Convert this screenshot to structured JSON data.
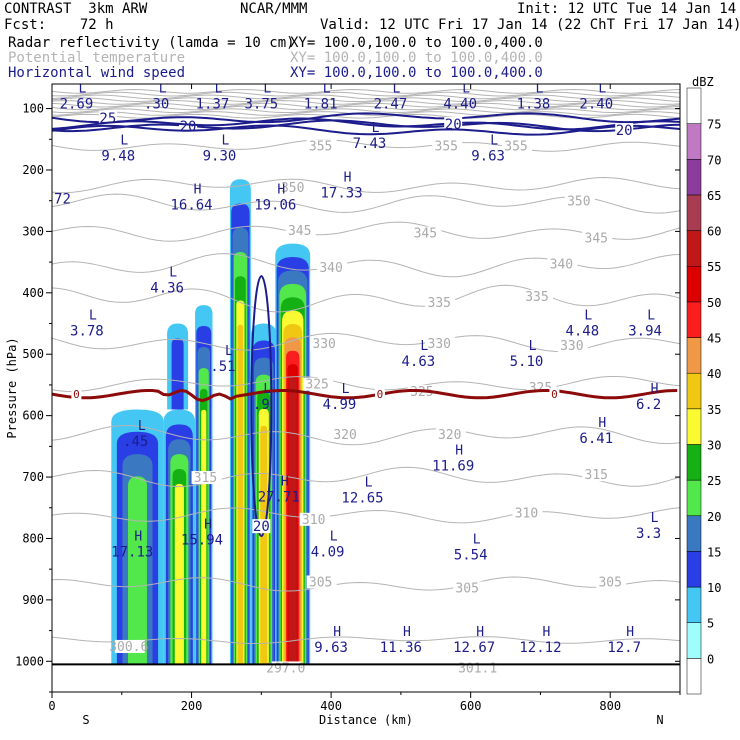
{
  "header": {
    "model": "CONTRAST  3km ARW",
    "org": "NCAR/MMM",
    "init": "Init: 12 UTC Tue 14 Jan 14",
    "fcst": "Fcst:    72 h",
    "valid": "Valid: 12 UTC Fri 17 Jan 14 (22 ChT Fri 17 Jan 14)",
    "fields": [
      {
        "label": "Radar reflectivity (lamda = 10 cm)",
        "xy": "XY= 100.0,100.0 to 100.0,400.0",
        "color": "#000000"
      },
      {
        "label": "Potential temperature",
        "xy": "XY= 100.0,100.0 to 100.0,400.0",
        "color": "#b4b4b4"
      },
      {
        "label": "Horizontal wind speed",
        "xy": "XY= 100.0,100.0 to 100.0,400.0",
        "color": "#1c1c8c"
      }
    ]
  },
  "chart_data": {
    "type": "cross-section",
    "xlabel": "Distance (km)",
    "ylabel": "Pressure (hPa)",
    "xlim": [
      0,
      900
    ],
    "ylim": [
      1050,
      60
    ],
    "x_ticks": [
      0,
      200,
      400,
      600,
      800
    ],
    "y_ticks": [
      100,
      200,
      300,
      400,
      500,
      600,
      700,
      800,
      900,
      1000
    ],
    "x_end_labels": {
      "left": "S",
      "right": "N"
    },
    "colorbar": {
      "title": "dBZ",
      "levels": [
        0,
        5,
        10,
        15,
        20,
        25,
        30,
        35,
        40,
        45,
        50,
        55,
        60,
        65,
        70,
        75
      ],
      "colors": [
        "#ffffff",
        "#9ffdfc",
        "#45c7f4",
        "#2a3ee6",
        "#3a78c2",
        "#52e84c",
        "#14b014",
        "#fafa32",
        "#f0c814",
        "#f09846",
        "#fa1e1e",
        "#dc0000",
        "#c01818",
        "#a83c50",
        "#8c3c9c",
        "#c07ac4",
        "#ffffff"
      ]
    },
    "reflectivity_columns": [
      {
        "x0": 85,
        "x1": 160,
        "top_p": 590,
        "bottom_p": 1005,
        "max_dbz": 20
      },
      {
        "x0": 160,
        "x1": 205,
        "top_p": 590,
        "bottom_p": 1005,
        "max_dbz": 30
      },
      {
        "x0": 165,
        "x1": 195,
        "top_p": 450,
        "bottom_p": 590,
        "max_dbz": 10
      },
      {
        "x0": 205,
        "x1": 230,
        "top_p": 420,
        "bottom_p": 1005,
        "max_dbz": 30
      },
      {
        "x0": 255,
        "x1": 285,
        "top_p": 215,
        "bottom_p": 1005,
        "max_dbz": 35
      },
      {
        "x0": 285,
        "x1": 322,
        "top_p": 450,
        "bottom_p": 1005,
        "max_dbz": 35
      },
      {
        "x0": 320,
        "x1": 370,
        "top_p": 320,
        "bottom_p": 1005,
        "max_dbz": 55
      }
    ],
    "theta_labels": [
      {
        "x": 385,
        "p": 160,
        "text": "355"
      },
      {
        "x": 565,
        "p": 160,
        "text": "355"
      },
      {
        "x": 665,
        "p": 160,
        "text": "355"
      },
      {
        "x": 345,
        "p": 228,
        "text": "350"
      },
      {
        "x": 755,
        "p": 250,
        "text": "350"
      },
      {
        "x": 355,
        "p": 298,
        "text": "345"
      },
      {
        "x": 535,
        "p": 302,
        "text": "345"
      },
      {
        "x": 780,
        "p": 310,
        "text": "345"
      },
      {
        "x": 400,
        "p": 358,
        "text": "340"
      },
      {
        "x": 730,
        "p": 352,
        "text": "340"
      },
      {
        "x": 555,
        "p": 415,
        "text": "335"
      },
      {
        "x": 695,
        "p": 405,
        "text": "335"
      },
      {
        "x": 745,
        "p": 485,
        "text": "330"
      },
      {
        "x": 390,
        "p": 482,
        "text": "330"
      },
      {
        "x": 555,
        "p": 482,
        "text": "330"
      },
      {
        "x": 380,
        "p": 548,
        "text": "325"
      },
      {
        "x": 530,
        "p": 560,
        "text": "325"
      },
      {
        "x": 700,
        "p": 553,
        "text": "325"
      },
      {
        "x": 420,
        "p": 630,
        "text": "320"
      },
      {
        "x": 570,
        "p": 630,
        "text": "320"
      },
      {
        "x": 220,
        "p": 700,
        "text": "315"
      },
      {
        "x": 780,
        "p": 695,
        "text": "315"
      },
      {
        "x": 375,
        "p": 768,
        "text": "310"
      },
      {
        "x": 680,
        "p": 758,
        "text": "310"
      },
      {
        "x": 385,
        "p": 870,
        "text": "305"
      },
      {
        "x": 595,
        "p": 880,
        "text": "305"
      },
      {
        "x": 800,
        "p": 870,
        "text": "305"
      },
      {
        "x": 110,
        "p": 975,
        "text": "300.6"
      },
      {
        "x": 335,
        "p": 1010,
        "text": "297.0"
      },
      {
        "x": 610,
        "p": 1010,
        "text": "301.1"
      }
    ],
    "theta_lines": [
      {
        "p": 160,
        "wave": 6
      },
      {
        "p": 225,
        "wave": 8
      },
      {
        "p": 255,
        "wave": 10
      },
      {
        "p": 300,
        "wave": 10
      },
      {
        "p": 355,
        "wave": 12
      },
      {
        "p": 410,
        "wave": 14
      },
      {
        "p": 480,
        "wave": 10
      },
      {
        "p": 548,
        "wave": 8
      },
      {
        "p": 632,
        "wave": 10
      },
      {
        "p": 700,
        "wave": 10
      },
      {
        "p": 762,
        "wave": 8
      },
      {
        "p": 875,
        "wave": 8
      },
      {
        "p": 965,
        "wave": 4
      }
    ],
    "wind_contours": [
      {
        "label": "25",
        "p": 115,
        "label_x": 80
      },
      {
        "label": "20",
        "p": 128,
        "label_x": 195
      },
      {
        "label": "20",
        "p": 125,
        "label_x": 575
      },
      {
        "label": "20",
        "p": 135,
        "label_x": 820
      },
      {
        "label": "20",
        "p": 780,
        "label_x": 300
      }
    ],
    "zero_line": {
      "p": 565,
      "labels": [
        {
          "x": 35,
          "text": "0"
        },
        {
          "x": 470,
          "text": "0"
        },
        {
          "x": 720,
          "text": "0"
        }
      ]
    },
    "highs_lows": [
      {
        "kind": "L",
        "value": "2.69",
        "x": 35,
        "p": 80
      },
      {
        "kind": "L",
        "value": ".30",
        "x": 150,
        "p": 80
      },
      {
        "kind": "L",
        "value": "1.37",
        "x": 230,
        "p": 80
      },
      {
        "kind": "L",
        "value": "3.75",
        "x": 300,
        "p": 80
      },
      {
        "kind": "L",
        "value": "1.81",
        "x": 385,
        "p": 80
      },
      {
        "kind": "L",
        "value": "2.47",
        "x": 485,
        "p": 80
      },
      {
        "kind": "L",
        "value": "4.40",
        "x": 585,
        "p": 80
      },
      {
        "kind": "L",
        "value": "1.38",
        "x": 690,
        "p": 80
      },
      {
        "kind": "L",
        "value": "2.40",
        "x": 780,
        "p": 80
      },
      {
        "kind": "L",
        "value": "9.48",
        "x": 95,
        "p": 165
      },
      {
        "kind": "L",
        "value": "9.30",
        "x": 240,
        "p": 165
      },
      {
        "kind": "L",
        "value": "7.43",
        "x": 455,
        "p": 145
      },
      {
        "kind": "L",
        "value": "9.63",
        "x": 625,
        "p": 165
      },
      {
        "kind": "",
        "value": "72",
        "x": 15,
        "p": 235
      },
      {
        "kind": "H",
        "value": "16.64",
        "x": 200,
        "p": 245
      },
      {
        "kind": "H",
        "value": "19.06",
        "x": 320,
        "p": 245
      },
      {
        "kind": "H",
        "value": "17.33",
        "x": 415,
        "p": 225
      },
      {
        "kind": "L",
        "value": "4.36",
        "x": 165,
        "p": 380
      },
      {
        "kind": "L",
        "value": "3.78",
        "x": 50,
        "p": 450
      },
      {
        "kind": "L",
        "value": ".51",
        "x": 245,
        "p": 508
      },
      {
        "kind": "L",
        "value": "4.63",
        "x": 525,
        "p": 500
      },
      {
        "kind": "L",
        "value": "5.10",
        "x": 680,
        "p": 500
      },
      {
        "kind": "L",
        "value": "4.48",
        "x": 760,
        "p": 450
      },
      {
        "kind": "L",
        "value": "3.94",
        "x": 850,
        "p": 450
      },
      {
        "kind": "L",
        "value": ".45",
        "x": 120,
        "p": 630
      },
      {
        "kind": "L",
        "value": "4.99",
        "x": 412,
        "p": 570
      },
      {
        "kind": "L",
        "value": ".9",
        "x": 300,
        "p": 570
      },
      {
        "kind": "H",
        "value": "6.2",
        "x": 855,
        "p": 570
      },
      {
        "kind": "H",
        "value": "6.41",
        "x": 780,
        "p": 625
      },
      {
        "kind": "H",
        "value": "11.69",
        "x": 575,
        "p": 670
      },
      {
        "kind": "L",
        "value": "12.65",
        "x": 445,
        "p": 722
      },
      {
        "kind": "H",
        "value": "27.71",
        "x": 325,
        "p": 720
      },
      {
        "kind": "H",
        "value": "15.94",
        "x": 215,
        "p": 790
      },
      {
        "kind": "H",
        "value": "17.13",
        "x": 115,
        "p": 810
      },
      {
        "kind": "L",
        "value": "4.09",
        "x": 395,
        "p": 810
      },
      {
        "kind": "L",
        "value": "5.54",
        "x": 600,
        "p": 815
      },
      {
        "kind": "L",
        "value": "3.3",
        "x": 855,
        "p": 780
      },
      {
        "kind": "H",
        "value": "9.63",
        "x": 400,
        "p": 965
      },
      {
        "kind": "H",
        "value": "11.36",
        "x": 500,
        "p": 965
      },
      {
        "kind": "H",
        "value": "12.67",
        "x": 605,
        "p": 965
      },
      {
        "kind": "H",
        "value": "12.12",
        "x": 700,
        "p": 965
      },
      {
        "kind": "H",
        "value": "12.7",
        "x": 820,
        "p": 965
      }
    ]
  }
}
